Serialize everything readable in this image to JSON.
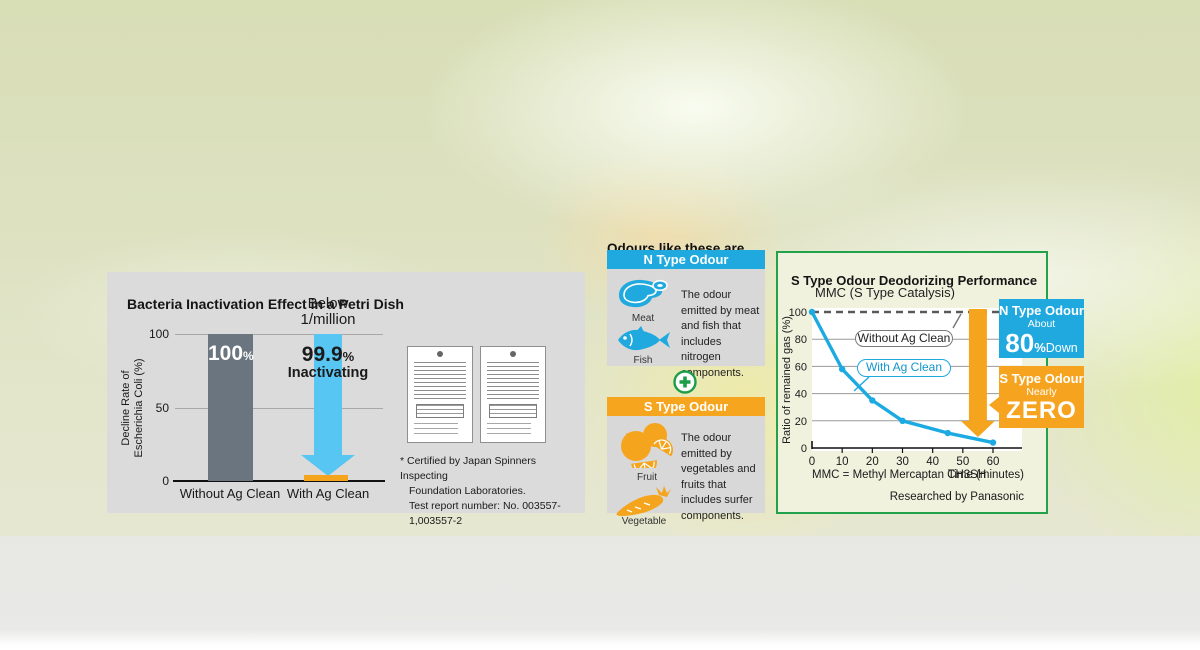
{
  "chart_data": [
    {
      "type": "bar",
      "title": "Bacteria Inactivation Effect in a Petri Dish",
      "ylabel": "Decline Rate of Escherichia Coli (%)",
      "categories": [
        "Without Ag Clean",
        "With Ag Clean"
      ],
      "values": [
        100,
        0.0001
      ],
      "yticks": [
        0,
        50,
        100
      ],
      "ylim": [
        0,
        100
      ],
      "data_labels": [
        {
          "value": "100",
          "unit": "%"
        },
        {
          "value": "99.9",
          "unit": "%",
          "caption": "Inactivating",
          "annotation_line1": "Below",
          "annotation_line2": "1/million"
        }
      ],
      "note": "With Ag Clean shown as blue decline arrow onto small orange remainder bar"
    },
    {
      "type": "line",
      "title": "S Type Odour Deodorizing Performance",
      "subtitle": "MMC (S Type Catalysis)",
      "xlabel": "Time (minutes)",
      "ylabel": "Ratio of remained gas (%)",
      "xticks": [
        0,
        10,
        20,
        30,
        40,
        50,
        60
      ],
      "yticks": [
        0,
        20,
        40,
        60,
        80,
        100
      ],
      "xlim": [
        0,
        60
      ],
      "ylim": [
        0,
        100
      ],
      "grid": true,
      "legend_position": "inside ovals",
      "series": [
        {
          "name": "Without Ag Clean",
          "style": "dashed",
          "color": "#5a5a5a",
          "x": [
            0,
            60
          ],
          "y": [
            100,
            100
          ]
        },
        {
          "name": "With Ag Clean",
          "style": "solid",
          "color": "#1baae1",
          "x": [
            0,
            10,
            20,
            30,
            45,
            60
          ],
          "y": [
            100,
            58,
            35,
            20,
            11,
            4
          ]
        }
      ],
      "footnote": "MMC = Methyl Mercaptan CH3SH",
      "credit": "Researched by Panasonic"
    }
  ],
  "left_card": {
    "ylabel_lines": [
      "Decline Rate of",
      "Escherichia Coli (%)"
    ],
    "footnote": {
      "line1": "* Certified by Japan Spinners Inspecting",
      "line2": "Foundation Laboratories.",
      "line3": "Test report number: No. 003557-1,003557-2"
    }
  },
  "middle": {
    "header": "Odours like these are reduced",
    "n_type": {
      "title": "N Type Odour",
      "item1": "Meat",
      "item2": "Fish",
      "description": "The odour emitted by meat and fish that includes nitrogen components."
    },
    "s_type": {
      "title": "S Type Odour",
      "item1": "Fruit",
      "item2": "Vegetable",
      "description": "The odour emitted by vegetables and fruits that includes surfer components."
    }
  },
  "right_panel": {
    "callout_n": {
      "title": "N Type Odour",
      "qualifier": "About",
      "value": "80",
      "unit": "%",
      "suffix": "Down"
    },
    "callout_s": {
      "title": "S Type Odour",
      "qualifier": "Nearly",
      "value": "ZERO"
    }
  },
  "colors": {
    "blue": "#1fa9df",
    "light_blue_arrow": "#58c6f2",
    "orange": "#f5a41e",
    "green_border": "#21a24b",
    "slate_bar": "#6a7580",
    "card_gray": "#dbdbdb",
    "box_gray": "#d8d8d8"
  }
}
